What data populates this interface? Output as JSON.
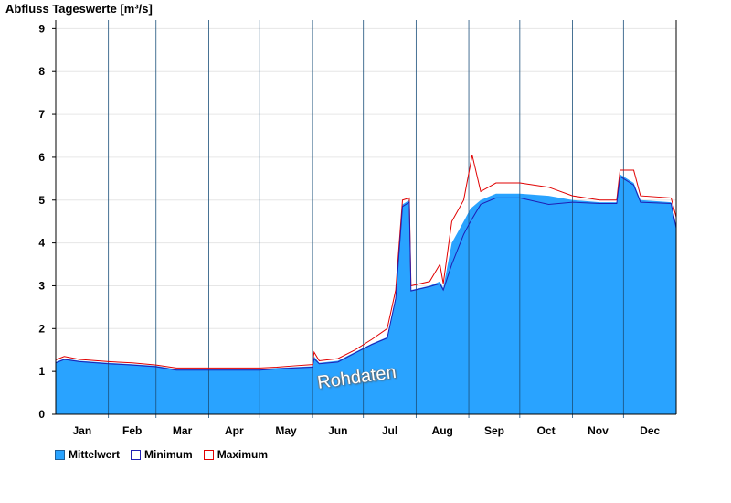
{
  "chart_data": {
    "type": "area",
    "title": "Abfluss Tageswerte [m³/s]",
    "ylim": [
      0,
      9.2
    ],
    "yticks": [
      0,
      1,
      2,
      3,
      4,
      5,
      6,
      7,
      8,
      9
    ],
    "months": [
      "Jan",
      "Feb",
      "Mar",
      "Apr",
      "May",
      "Jun",
      "Jul",
      "Aug",
      "Sep",
      "Oct",
      "Nov",
      "Dec"
    ],
    "grid": true,
    "legend_position": "bottom-left",
    "series": [
      {
        "name": "Mittelwert",
        "color": "#29a3ff",
        "points": [
          [
            0,
            1.22
          ],
          [
            5,
            1.3
          ],
          [
            14,
            1.25
          ],
          [
            31,
            1.2
          ],
          [
            45,
            1.17
          ],
          [
            59,
            1.13
          ],
          [
            71,
            1.05
          ],
          [
            90,
            1.05
          ],
          [
            120,
            1.05
          ],
          [
            130,
            1.08
          ],
          [
            140,
            1.1
          ],
          [
            151,
            1.12
          ],
          [
            152,
            1.35
          ],
          [
            155,
            1.2
          ],
          [
            166,
            1.25
          ],
          [
            176,
            1.45
          ],
          [
            186,
            1.65
          ],
          [
            195,
            1.8
          ],
          [
            200,
            2.75
          ],
          [
            204,
            4.9
          ],
          [
            208,
            5.0
          ],
          [
            209,
            2.9
          ],
          [
            220,
            3.0
          ],
          [
            226,
            3.1
          ],
          [
            228,
            2.95
          ],
          [
            233,
            4.0
          ],
          [
            240,
            4.5
          ],
          [
            244,
            4.8
          ],
          [
            250,
            5.0
          ],
          [
            259,
            5.15
          ],
          [
            273,
            5.15
          ],
          [
            290,
            5.1
          ],
          [
            304,
            5.0
          ],
          [
            320,
            4.95
          ],
          [
            330,
            4.95
          ],
          [
            332,
            5.6
          ],
          [
            340,
            5.4
          ],
          [
            344,
            5.0
          ],
          [
            362,
            4.95
          ],
          [
            365,
            4.4
          ]
        ]
      },
      {
        "name": "Minimum",
        "color": "#1f1fb3",
        "points": [
          [
            0,
            1.2
          ],
          [
            5,
            1.28
          ],
          [
            14,
            1.23
          ],
          [
            31,
            1.18
          ],
          [
            45,
            1.15
          ],
          [
            59,
            1.11
          ],
          [
            71,
            1.03
          ],
          [
            90,
            1.03
          ],
          [
            120,
            1.03
          ],
          [
            130,
            1.06
          ],
          [
            140,
            1.08
          ],
          [
            151,
            1.1
          ],
          [
            152,
            1.3
          ],
          [
            155,
            1.18
          ],
          [
            166,
            1.22
          ],
          [
            176,
            1.43
          ],
          [
            186,
            1.63
          ],
          [
            195,
            1.78
          ],
          [
            200,
            2.7
          ],
          [
            204,
            4.85
          ],
          [
            208,
            4.95
          ],
          [
            209,
            2.88
          ],
          [
            220,
            2.98
          ],
          [
            226,
            3.05
          ],
          [
            228,
            2.9
          ],
          [
            233,
            3.5
          ],
          [
            240,
            4.2
          ],
          [
            244,
            4.5
          ],
          [
            250,
            4.9
          ],
          [
            259,
            5.05
          ],
          [
            273,
            5.05
          ],
          [
            290,
            4.9
          ],
          [
            304,
            4.95
          ],
          [
            320,
            4.92
          ],
          [
            330,
            4.92
          ],
          [
            332,
            5.55
          ],
          [
            340,
            5.35
          ],
          [
            344,
            4.95
          ],
          [
            362,
            4.92
          ],
          [
            365,
            4.35
          ]
        ]
      },
      {
        "name": "Maximum",
        "color": "#e00000",
        "points": [
          [
            0,
            1.27
          ],
          [
            5,
            1.35
          ],
          [
            14,
            1.28
          ],
          [
            31,
            1.23
          ],
          [
            45,
            1.2
          ],
          [
            59,
            1.15
          ],
          [
            71,
            1.08
          ],
          [
            90,
            1.08
          ],
          [
            120,
            1.08
          ],
          [
            130,
            1.1
          ],
          [
            140,
            1.13
          ],
          [
            151,
            1.16
          ],
          [
            152,
            1.45
          ],
          [
            155,
            1.25
          ],
          [
            166,
            1.3
          ],
          [
            176,
            1.5
          ],
          [
            186,
            1.75
          ],
          [
            195,
            2.0
          ],
          [
            200,
            2.9
          ],
          [
            204,
            5.0
          ],
          [
            208,
            5.05
          ],
          [
            209,
            3.0
          ],
          [
            220,
            3.1
          ],
          [
            226,
            3.5
          ],
          [
            228,
            3.05
          ],
          [
            233,
            4.5
          ],
          [
            240,
            5.0
          ],
          [
            245,
            6.05
          ],
          [
            250,
            5.2
          ],
          [
            259,
            5.4
          ],
          [
            273,
            5.4
          ],
          [
            290,
            5.3
          ],
          [
            304,
            5.1
          ],
          [
            320,
            5.0
          ],
          [
            330,
            5.0
          ],
          [
            332,
            5.7
          ],
          [
            340,
            5.7
          ],
          [
            344,
            5.1
          ],
          [
            362,
            5.05
          ],
          [
            365,
            4.6
          ]
        ]
      }
    ],
    "annotation": "Rohdaten"
  }
}
